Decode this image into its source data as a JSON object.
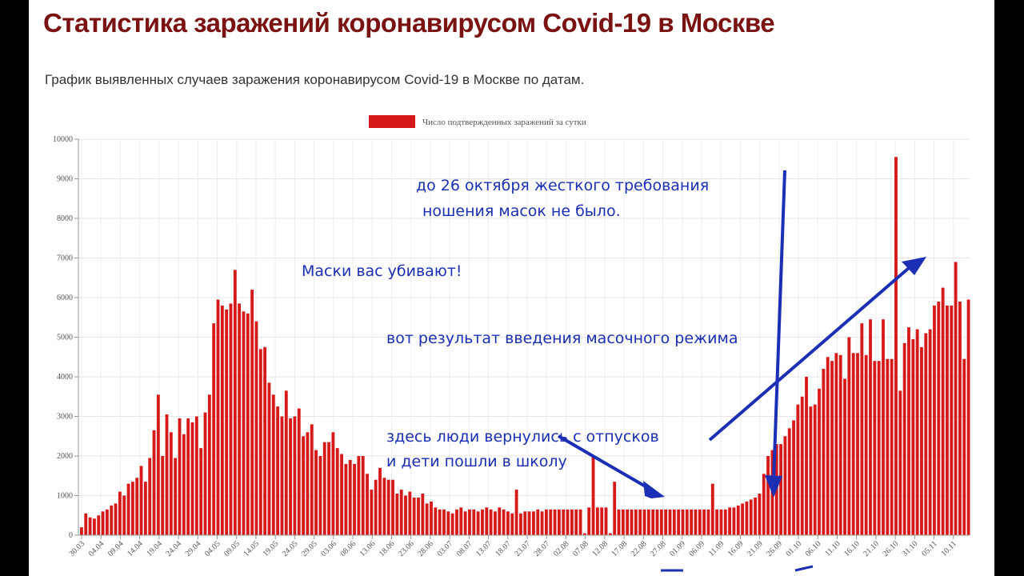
{
  "page": {
    "title": "Статистика заражений коронавирусом Covid-19 в Москве",
    "subtitle": "График выявленных случаев заражения коронавирусом Covid-19 в Москве по датам."
  },
  "colors": {
    "bar": "#d61a1a",
    "annotation": "#1b2fb5",
    "title": "#7a1212"
  },
  "chart_data": {
    "type": "bar",
    "legend": {
      "label": "Число подтвержденных заражений за сутки",
      "position": "top-center"
    },
    "ylim": [
      0,
      10000
    ],
    "y_ticks": [
      0,
      1000,
      2000,
      3000,
      4000,
      5000,
      6000,
      7000,
      8000,
      9000,
      10000
    ],
    "grid": true,
    "x_tick_labels": [
      "30.03",
      "04.04",
      "09.04",
      "14.04",
      "19.04",
      "24.04",
      "29.04",
      "04.05",
      "09.05",
      "14.05",
      "19.05",
      "24.05",
      "29.05",
      "03.06",
      "08.06",
      "13.06",
      "18.06",
      "23.06",
      "28.06",
      "03.07",
      "08.07",
      "13.07",
      "18.07",
      "23.07",
      "28.07",
      "02.08",
      "07.08",
      "12.08",
      "17.08",
      "22.08",
      "27.08",
      "01.09",
      "06.09",
      "11.09",
      "16.09",
      "21.09",
      "26.09",
      "01.10",
      "06.10",
      "11.10",
      "16.10",
      "21.10",
      "26.10",
      "31.10",
      "05.11",
      "10.11"
    ],
    "series": [
      {
        "values": [
          200,
          550,
          450,
          420,
          500,
          600,
          650,
          750,
          800,
          1100,
          1000,
          1300,
          1350,
          1450,
          1750,
          1350,
          1950,
          2650,
          3550,
          2000,
          3050,
          2600,
          1950,
          2950,
          2550,
          2950,
          2850,
          3000,
          2200,
          3100,
          3550,
          5350,
          5950,
          5800,
          5700,
          5850,
          6700,
          5850,
          5650,
          5600,
          6200,
          5400,
          4700,
          4750,
          3850,
          3550,
          3250,
          3000,
          3650,
          2950,
          3000,
          3200,
          2500,
          2600,
          2800,
          2150,
          2000,
          2350,
          2350,
          2600,
          2200,
          2050,
          1800,
          1900,
          1800,
          2000,
          2000,
          1550,
          1150,
          1400,
          1700,
          1450,
          1400,
          1400,
          1050,
          1150,
          1000,
          1100,
          950,
          950,
          1050,
          800,
          850,
          700,
          650,
          650,
          600,
          550,
          650,
          700,
          600,
          650,
          650,
          600,
          650,
          700,
          650,
          600,
          700,
          650,
          600,
          550,
          1150,
          550,
          600,
          600,
          600,
          650,
          600,
          650,
          650,
          650,
          650,
          650,
          650,
          650,
          650,
          650,
          50,
          700,
          2000,
          700,
          700,
          700,
          50,
          1350,
          650,
          650,
          650,
          650,
          650,
          650,
          650,
          650,
          650,
          650,
          650,
          650,
          650,
          650,
          650,
          650,
          650,
          650,
          650,
          650,
          650,
          650,
          1300,
          650,
          650,
          650,
          700,
          700,
          750,
          800,
          850,
          900,
          950,
          1050,
          1550,
          2000,
          2150,
          2300,
          2300,
          2500,
          2700,
          2900,
          3300,
          3500,
          4000,
          3250,
          3300,
          3700,
          4200,
          4500,
          4400,
          4600,
          4550,
          3950,
          5000,
          4600,
          4600,
          5350,
          4550,
          5450,
          4400,
          4400,
          5450,
          4450,
          4450,
          9550,
          3650,
          4850,
          5250,
          4950,
          5200,
          4750,
          5100,
          5200,
          5800,
          5900,
          6250,
          5800,
          5800,
          6900,
          5900,
          4450,
          5950
        ]
      }
    ],
    "annotations": [
      {
        "text": "до 26 октября жесткого требования"
      },
      {
        "text": "ношения масок не было."
      },
      {
        "text": "Маски вас убивают!"
      },
      {
        "text": "вот результат введения масочного режима"
      },
      {
        "text": "здесь люди вернулись с отпусков"
      },
      {
        "text": "и дети пошли в школу"
      }
    ]
  }
}
